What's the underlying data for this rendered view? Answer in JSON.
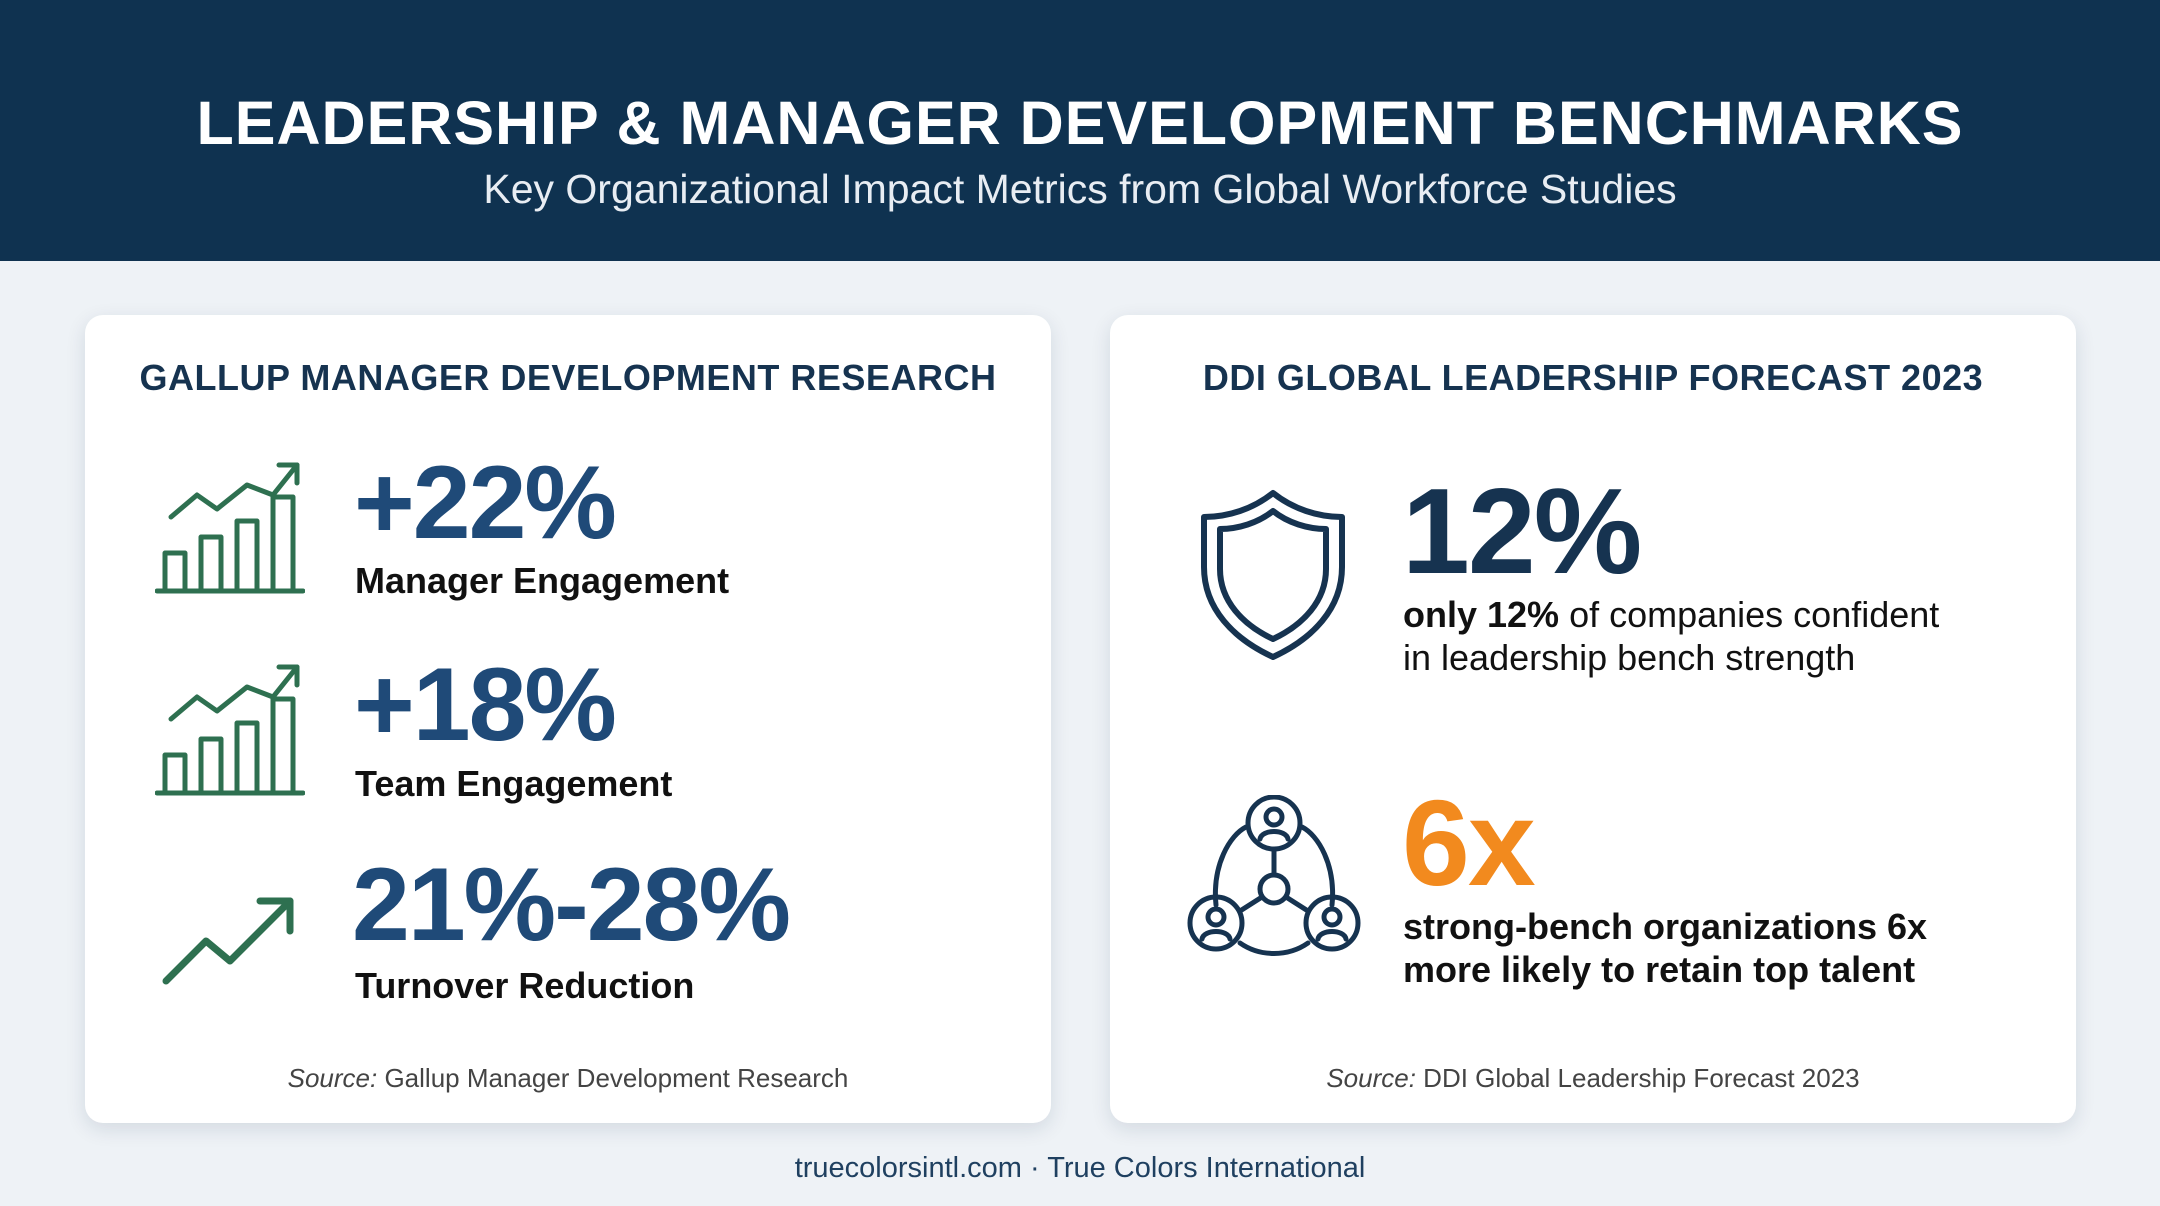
{
  "header": {
    "title": "LEADERSHIP & MANAGER DEVELOPMENT BENCHMARKS",
    "subtitle": "Key Organizational Impact Metrics from Global Workforce Studies"
  },
  "left_card": {
    "title": "GALLUP MANAGER DEVELOPMENT RESEARCH",
    "metrics": [
      {
        "value": "+22%",
        "label": "Manager Engagement",
        "icon": "bar-chart-growth-icon"
      },
      {
        "value": "+18%",
        "label": "Team Engagement",
        "icon": "bar-chart-growth-icon"
      },
      {
        "value": "21%-28%",
        "label": "Turnover Reduction",
        "icon": "trend-up-arrow-icon"
      }
    ],
    "source_prefix": "Source:",
    "source_text": " Gallup Manager Development Research"
  },
  "right_card": {
    "title": "DDI GLOBAL LEADERSHIP FORECAST 2023",
    "stat1": {
      "value": "12%",
      "desc_bold": "only 12%",
      "desc_rest": " of companies confident",
      "desc_line2": "in leadership bench strength",
      "icon": "shield-icon"
    },
    "stat2": {
      "value": "6x",
      "desc_line1": "strong-bench organizations 6x",
      "desc_line2": "more likely to retain top talent",
      "icon": "people-network-icon"
    },
    "source_prefix": "Source:",
    "source_text": " DDI Global Leadership Forecast 2023"
  },
  "footer": {
    "text": "truecolorsintl.com · True Colors International"
  },
  "colors": {
    "header_bg": "#0f3250",
    "accent_blue": "#1f4a78",
    "dark_navy": "#163350",
    "accent_green": "#2e7050",
    "accent_orange": "#f28a1e"
  }
}
